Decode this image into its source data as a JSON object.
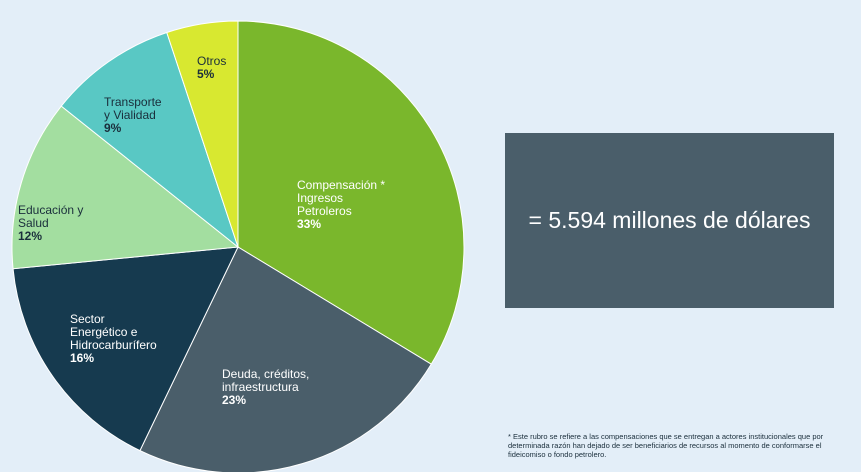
{
  "chart_data": {
    "type": "pie",
    "slices": [
      {
        "label": "Compensación *\nIngresos\nPetroleros",
        "value_label": "33%",
        "value": 33,
        "color": "#7ab72c"
      },
      {
        "label": "Deuda, créditos,\ninfraestructura",
        "value_label": "23%",
        "value": 23,
        "color": "#4a5e6a"
      },
      {
        "label": "Sector\nEnergético e\nHidrocarburífero",
        "value_label": "16%",
        "value": 16,
        "color": "#163a4f"
      },
      {
        "label": "Educación y\nSalud",
        "value_label": "12%",
        "value": 12,
        "color": "#a3dea0"
      },
      {
        "label": "Transporte\ny Vialidad",
        "value_label": "9%",
        "value": 9,
        "color": "#59c8c4"
      },
      {
        "label": "Otros",
        "value_label": "5%",
        "value": 5,
        "color": "#d8e830"
      }
    ],
    "start_angle_deg": 0,
    "direction": "clockwise"
  },
  "total": "= 5.594 millones de dólares",
  "footnote": "* Este rubro se refiere a las compensaciones que se entregan a actores institucionales que por determinada razón han dejado de ser beneficiarios de recursos al momento de conformarse el fideicomiso o fondo petrolero."
}
